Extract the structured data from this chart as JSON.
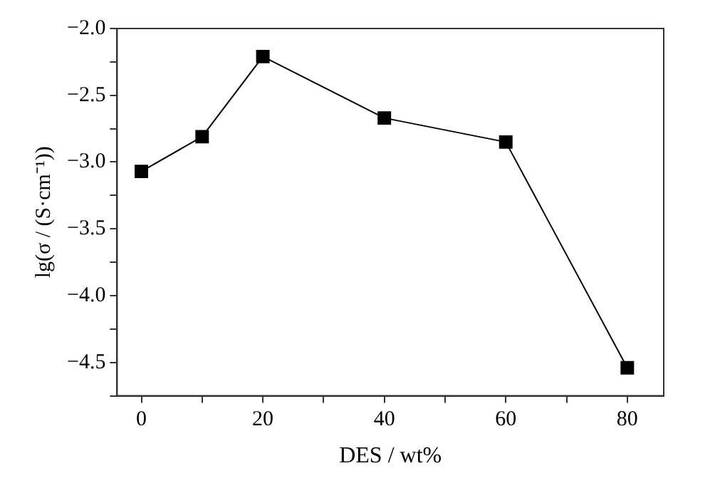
{
  "chart_data": {
    "type": "line",
    "xlabel": "DES / wt%",
    "ylabel": "lg(σ / (S·cm⁻¹))",
    "x": [
      0,
      10,
      20,
      40,
      60,
      80
    ],
    "series": [
      {
        "color": "#000000",
        "values": [
          -3.07,
          -2.81,
          -2.21,
          -2.67,
          -2.85,
          -4.54
        ]
      }
    ],
    "xlim": [
      -4,
      86
    ],
    "ylim": [
      -4.75,
      -2.0
    ],
    "xticks": [
      0,
      {
        "value": 10,
        "label": null
      },
      20,
      {
        "value": 30,
        "label": null
      },
      40,
      {
        "value": 50,
        "label": null
      },
      60,
      {
        "value": 70,
        "label": null
      },
      80
    ],
    "yticks": [
      {
        "value": -4.75,
        "label": null
      },
      {
        "value": -4.5,
        "label": "−4.5"
      },
      {
        "value": -4.25,
        "label": null
      },
      {
        "value": -4.0,
        "label": "−4.0"
      },
      {
        "value": -3.75,
        "label": null
      },
      {
        "value": -3.5,
        "label": "−3.5"
      },
      {
        "value": -3.25,
        "label": null
      },
      {
        "value": -3.0,
        "label": "−3.0"
      },
      {
        "value": -2.75,
        "label": null
      },
      {
        "value": -2.5,
        "label": "−2.5"
      },
      {
        "value": -2.25,
        "label": null
      },
      {
        "value": -2.0,
        "label": "−2.0"
      }
    ],
    "marker": "square",
    "line_style": "solid",
    "grid": false,
    "legend": false
  }
}
